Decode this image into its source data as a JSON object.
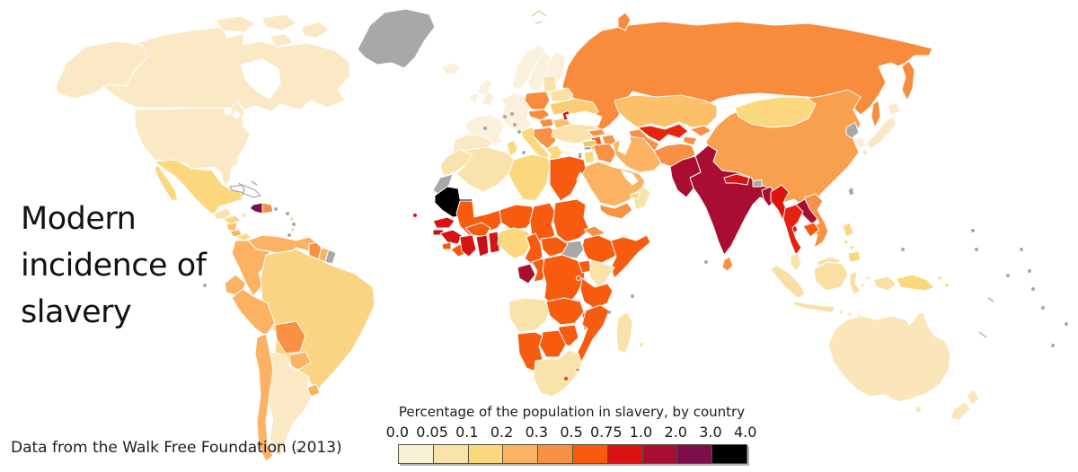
{
  "title": "Modern\nincidence of\nslavery",
  "attribution": "Data from the Walk Free Foundation (2013)",
  "legend": {
    "title": "Percentage of the population in slavery, by country",
    "ticks": [
      "0.0",
      "0.05",
      "0.1",
      "0.2",
      "0.3",
      "0.5",
      "0.75",
      "1.0",
      "2.0",
      "3.0",
      "4.0"
    ],
    "bins": [
      {
        "range": "0.0–0.05",
        "color": "#F8EFD7"
      },
      {
        "range": "0.05–0.1",
        "color": "#F9E3AB"
      },
      {
        "range": "0.1–0.2",
        "color": "#FBD87E"
      },
      {
        "range": "0.2–0.3",
        "color": "#FBB262"
      },
      {
        "range": "0.3–0.5",
        "color": "#F99145"
      },
      {
        "range": "0.5–0.75",
        "color": "#F75B10"
      },
      {
        "range": "0.75–1.0",
        "color": "#D81311"
      },
      {
        "range": "1.0–2.0",
        "color": "#A90D31"
      },
      {
        "range": "2.0–3.0",
        "color": "#7E0D4E"
      },
      {
        "range": "3.0–4.0",
        "color": "#000000"
      }
    ]
  },
  "map": {
    "ocean_color": "#FFFFFF",
    "border_color": "#FFFFFF",
    "no_data_color": "#A8A8A8",
    "dot_colors": {
      "gray": "#A8A8A8",
      "cream": "#F9E3AB",
      "yellow": "#FBD87E",
      "orange": "#F99145",
      "red": "#D81311"
    },
    "regions": [
      {
        "id": "greenland",
        "name": "Greenland",
        "value": "No data",
        "color": "#A8A8A8"
      },
      {
        "id": "canada",
        "name": "Canada",
        "value": "0.0–0.05",
        "color": "#FBE8C4"
      },
      {
        "id": "united-states",
        "name": "United States",
        "value": "0.0–0.05",
        "color": "#FBE8C4"
      },
      {
        "id": "mexico",
        "name": "Mexico",
        "value": "0.1–0.2",
        "color": "#FBD87E"
      },
      {
        "id": "guatemala-belize",
        "name": "Guatemala / Belize",
        "value": "0.05–0.1",
        "color": "#F9E3AB"
      },
      {
        "id": "honduras",
        "name": "Honduras",
        "value": "0.1–0.2",
        "color": "#FBD87E"
      },
      {
        "id": "nicaragua",
        "name": "Nicaragua",
        "value": "0.2–0.3",
        "color": "#FBC069"
      },
      {
        "id": "costa-rica",
        "name": "Costa Rica",
        "value": "0.2–0.3",
        "color": "#FBB262"
      },
      {
        "id": "panama",
        "name": "Panama",
        "value": "0.1–0.2",
        "color": "#FBD87E"
      },
      {
        "id": "cuba",
        "name": "Cuba",
        "value": "No data",
        "color": "#FFFFFF"
      },
      {
        "id": "haiti",
        "name": "Haiti",
        "value": "2.0–3.0",
        "color": "#7E0D4E"
      },
      {
        "id": "dominican-republic",
        "name": "Dominican Republic",
        "value": "0.3–0.5",
        "color": "#F99145"
      },
      {
        "id": "venezuela",
        "name": "Venezuela",
        "value": "0.2–0.3",
        "color": "#FBB262"
      },
      {
        "id": "colombia",
        "name": "Colombia",
        "value": "0.2–0.3",
        "color": "#FBB262"
      },
      {
        "id": "guyana",
        "name": "Guyana",
        "value": "0.3–0.5",
        "color": "#F99145"
      },
      {
        "id": "suriname",
        "name": "Suriname",
        "value": "0.2–0.3",
        "color": "#FBB262"
      },
      {
        "id": "french-guiana",
        "name": "French Guiana",
        "value": "No data",
        "color": "#A8A8A8"
      },
      {
        "id": "ecuador",
        "name": "Ecuador",
        "value": "0.2–0.3",
        "color": "#FBB262"
      },
      {
        "id": "peru",
        "name": "Peru",
        "value": "0.2–0.3",
        "color": "#FBB262"
      },
      {
        "id": "brazil",
        "name": "Brazil",
        "value": "0.1–0.2",
        "color": "#FBD483"
      },
      {
        "id": "bolivia",
        "name": "Bolivia",
        "value": "0.3–0.5",
        "color": "#F99145"
      },
      {
        "id": "paraguay",
        "name": "Paraguay",
        "value": "0.2–0.3",
        "color": "#FBB262"
      },
      {
        "id": "uruguay",
        "name": "Uruguay",
        "value": "0.2–0.3",
        "color": "#FBB262"
      },
      {
        "id": "chile",
        "name": "Chile",
        "value": "0.2–0.3",
        "color": "#FBB262"
      },
      {
        "id": "argentina",
        "name": "Argentina",
        "value": "0.0–0.05",
        "color": "#FBE8C4"
      },
      {
        "id": "cape-verde",
        "name": "Cape Verde",
        "value": "0.75–1.0",
        "color": "#D81311"
      },
      {
        "id": "iceland",
        "name": "Iceland",
        "value": "0.0–0.05",
        "color": "#FAF0DC"
      },
      {
        "id": "norway",
        "name": "Norway",
        "value": "0.0–0.05",
        "color": "#FAF0DC"
      },
      {
        "id": "sweden",
        "name": "Sweden",
        "value": "0.0–0.05",
        "color": "#FAF0DC"
      },
      {
        "id": "finland",
        "name": "Finland",
        "value": "0.0–0.05",
        "color": "#FAF0DC"
      },
      {
        "id": "denmark",
        "name": "Denmark",
        "value": "0.0–0.05",
        "color": "#FAF0DC"
      },
      {
        "id": "united-kingdom",
        "name": "United Kingdom",
        "value": "0.0–0.05",
        "color": "#FAF0DC"
      },
      {
        "id": "ireland",
        "name": "Ireland",
        "value": "0.0–0.05",
        "color": "#FAF0DC"
      },
      {
        "id": "france",
        "name": "France",
        "value": "0.0–0.05",
        "color": "#FAF0DC"
      },
      {
        "id": "central-europe",
        "name": "Germany / Benelux / Alps",
        "value": "0.0–0.05",
        "color": "#FAF0DC"
      },
      {
        "id": "spain",
        "name": "Spain / Portugal",
        "value": "0.0–0.05",
        "color": "#FBE8C4"
      },
      {
        "id": "italy",
        "name": "Italy",
        "value": "0.1–0.2",
        "color": "#FBD87E"
      },
      {
        "id": "poland",
        "name": "Poland",
        "value": "0.3–0.5",
        "color": "#F98B3C"
      },
      {
        "id": "czech-slovakia",
        "name": "Czechia / Slovakia",
        "value": "0.3–0.5",
        "color": "#F98B3C"
      },
      {
        "id": "hungary",
        "name": "Hungary",
        "value": "0.3–0.5",
        "color": "#F98B3C"
      },
      {
        "id": "balkans",
        "name": "Western Balkans",
        "value": "0.3–0.5",
        "color": "#F99145"
      },
      {
        "id": "greece",
        "name": "Greece",
        "value": "0.1–0.2",
        "color": "#FBD87E"
      },
      {
        "id": "bulgaria",
        "name": "Bulgaria",
        "value": "0.3–0.5",
        "color": "#F99145"
      },
      {
        "id": "romania",
        "name": "Romania",
        "value": "0.2–0.3",
        "color": "#FBC069"
      },
      {
        "id": "moldova",
        "name": "Moldova",
        "value": "0.75–1.0",
        "color": "#D81311"
      },
      {
        "id": "ukraine",
        "name": "Ukraine",
        "value": "0.2–0.3",
        "color": "#FBCC74"
      },
      {
        "id": "belarus",
        "name": "Belarus",
        "value": "0.05–0.1",
        "color": "#FBE09E"
      },
      {
        "id": "baltic-states",
        "name": "Baltic states",
        "value": "0.05–0.1",
        "color": "#F9E3AB"
      },
      {
        "id": "russia",
        "name": "Russia",
        "value": "0.3–0.5",
        "color": "#F98B3C"
      },
      {
        "id": "kazakhstan",
        "name": "Kazakhstan",
        "value": "0.2–0.3",
        "color": "#FBC069"
      },
      {
        "id": "uzbekistan",
        "name": "Uzbekistan",
        "value": "0.75–1.0",
        "color": "#E8250C"
      },
      {
        "id": "turkmenistan",
        "name": "Turkmenistan",
        "value": "0.3–0.5",
        "color": "#F99145"
      },
      {
        "id": "kyrgyzstan",
        "name": "Kyrgyzstan",
        "value": "0.3–0.5",
        "color": "#F99145"
      },
      {
        "id": "tajikistan",
        "name": "Tajikistan",
        "value": "0.3–0.5",
        "color": "#F99145"
      },
      {
        "id": "afghanistan",
        "name": "Afghanistan",
        "value": "0.3–0.5",
        "color": "#F99145"
      },
      {
        "id": "georgia",
        "name": "Georgia",
        "value": "0.3–0.5",
        "color": "#F99145"
      },
      {
        "id": "armenia",
        "name": "Armenia",
        "value": "0.5–0.75",
        "color": "#F75B10"
      },
      {
        "id": "azerbaijan",
        "name": "Azerbaijan",
        "value": "0.3–0.5",
        "color": "#F99145"
      },
      {
        "id": "turkey",
        "name": "Turkey",
        "value": "0.05–0.1",
        "color": "#F9E3AB"
      },
      {
        "id": "syria",
        "name": "Syria",
        "value": "0.2–0.3",
        "color": "#FBC069"
      },
      {
        "id": "israel",
        "name": "Israel",
        "value": "No data",
        "color": "#A8A8A8"
      },
      {
        "id": "jordan",
        "name": "Jordan",
        "value": "0.1–0.2",
        "color": "#FBD87E"
      },
      {
        "id": "iraq",
        "name": "Iraq",
        "value": "0.3–0.5",
        "color": "#F99145"
      },
      {
        "id": "iran",
        "name": "Iran",
        "value": "0.2–0.3",
        "color": "#FBB262"
      },
      {
        "id": "saudi-arabia",
        "name": "Saudi Arabia",
        "value": "0.2–0.3",
        "color": "#FBB262"
      },
      {
        "id": "yemen",
        "name": "Yemen",
        "value": "0.3–0.5",
        "color": "#F99145"
      },
      {
        "id": "oman",
        "name": "Oman",
        "value": "0.05–0.1",
        "color": "#F9E3AB"
      },
      {
        "id": "uae",
        "name": "United Arab Emirates",
        "value": "0.1–0.2",
        "color": "#FBD87E"
      },
      {
        "id": "pakistan",
        "name": "Pakistan",
        "value": "1.0–2.0",
        "color": "#A90D31"
      },
      {
        "id": "india",
        "name": "India",
        "value": "1.0–2.0",
        "color": "#A90D31"
      },
      {
        "id": "nepal",
        "name": "Nepal",
        "value": "0.75–1.0",
        "color": "#D81311"
      },
      {
        "id": "bhutan",
        "name": "Bhutan",
        "value": "No data",
        "color": "#A8A8A8"
      },
      {
        "id": "bangladesh",
        "name": "Bangladesh",
        "value": "1.0–2.0",
        "color": "#A90D31"
      },
      {
        "id": "sri-lanka",
        "name": "Sri Lanka",
        "value": "0.3–0.5",
        "color": "#F99145"
      },
      {
        "id": "china",
        "name": "China",
        "value": "0.3–0.5",
        "color": "#F9A04E"
      },
      {
        "id": "mongolia",
        "name": "Mongolia",
        "value": "0.1–0.2",
        "color": "#FBD87E"
      },
      {
        "id": "north-korea",
        "name": "North Korea",
        "value": "No data",
        "color": "#A8A8A8"
      },
      {
        "id": "south-korea",
        "name": "South Korea",
        "value": "0.0–0.05",
        "color": "#F9EFD9"
      },
      {
        "id": "japan",
        "name": "Japan",
        "value": "0.0–0.05",
        "color": "#FBE8C4"
      },
      {
        "id": "taiwan",
        "name": "Taiwan",
        "value": "No data",
        "color": "#A8A8A8"
      },
      {
        "id": "myanmar",
        "name": "Myanmar",
        "value": "0.75–1.0",
        "color": "#DC1410"
      },
      {
        "id": "thailand",
        "name": "Thailand",
        "value": "0.75–1.0",
        "color": "#E6200E"
      },
      {
        "id": "laos",
        "name": "Laos",
        "value": "1.0–2.0",
        "color": "#A90D31"
      },
      {
        "id": "cambodia",
        "name": "Cambodia",
        "value": "0.5–0.75",
        "color": "#F75B10"
      },
      {
        "id": "vietnam",
        "name": "Vietnam",
        "value": "0.3–0.5",
        "color": "#F99145"
      },
      {
        "id": "malaysia",
        "name": "Malaysia",
        "value": "0.05–0.1",
        "color": "#F9E3AB"
      },
      {
        "id": "indonesia",
        "name": "Indonesia",
        "value": "0.1–0.2",
        "color": "#FADFA2"
      },
      {
        "id": "philippines",
        "name": "Philippines",
        "value": "0.1–0.2",
        "color": "#FBD87E"
      },
      {
        "id": "papua-new-guinea",
        "name": "Papua New Guinea",
        "value": "0.1–0.2",
        "color": "#FBD87E"
      },
      {
        "id": "morocco",
        "name": "Morocco",
        "value": "0.05–0.1",
        "color": "#F9E3AB"
      },
      {
        "id": "western-sahara",
        "name": "Western Sahara",
        "value": "No data",
        "color": "#A8A8A8"
      },
      {
        "id": "algeria",
        "name": "Algeria",
        "value": "0.05–0.1",
        "color": "#F9E3AB"
      },
      {
        "id": "tunisia",
        "name": "Tunisia",
        "value": "0.1–0.2",
        "color": "#FBD87E"
      },
      {
        "id": "libya",
        "name": "Libya",
        "value": "0.1–0.2",
        "color": "#FBD87E"
      },
      {
        "id": "egypt",
        "name": "Egypt",
        "value": "0.5–0.75",
        "color": "#F75B10"
      },
      {
        "id": "mauritania",
        "name": "Mauritania",
        "value": "3.0–4.0",
        "color": "#000000"
      },
      {
        "id": "mali",
        "name": "Mali",
        "value": "0.5–0.75",
        "color": "#F75B10"
      },
      {
        "id": "niger",
        "name": "Niger",
        "value": "0.5–0.75",
        "color": "#F75B10"
      },
      {
        "id": "chad",
        "name": "Chad",
        "value": "0.5–0.75",
        "color": "#F75B10"
      },
      {
        "id": "sudan",
        "name": "Sudan",
        "value": "0.5–0.75",
        "color": "#F75B10"
      },
      {
        "id": "eritrea",
        "name": "Eritrea",
        "value": "0.3–0.5",
        "color": "#F99145"
      },
      {
        "id": "djibouti",
        "name": "Djibouti",
        "value": "0.3–0.5",
        "color": "#F99145"
      },
      {
        "id": "ethiopia",
        "name": "Ethiopia",
        "value": "0.5–0.75",
        "color": "#F75B10"
      },
      {
        "id": "somalia",
        "name": "Somalia",
        "value": "0.5–0.75",
        "color": "#F75B10"
      },
      {
        "id": "south-sudan",
        "name": "South Sudan",
        "value": "No data",
        "color": "#A8A8A8"
      },
      {
        "id": "senegal",
        "name": "Senegal",
        "value": "0.75–1.0",
        "color": "#D81311"
      },
      {
        "id": "guinea-bissau",
        "name": "Guinea-Bissau",
        "value": "0.75–1.0",
        "color": "#C81016"
      },
      {
        "id": "guinea",
        "name": "Guinea",
        "value": "0.75–1.0",
        "color": "#D81311"
      },
      {
        "id": "sierra-leone",
        "name": "Sierra Leone",
        "value": "0.5–0.75",
        "color": "#F75B10"
      },
      {
        "id": "liberia",
        "name": "Liberia",
        "value": "0.5–0.75",
        "color": "#F75B10"
      },
      {
        "id": "cote-divoire",
        "name": "Côte d'Ivoire",
        "value": "0.75–1.0",
        "color": "#D81311"
      },
      {
        "id": "burkina-faso",
        "name": "Burkina Faso",
        "value": "0.5–0.75",
        "color": "#F75B10"
      },
      {
        "id": "ghana",
        "name": "Ghana",
        "value": "0.75–1.0",
        "color": "#C81016"
      },
      {
        "id": "togo-benin",
        "name": "Togo / Benin",
        "value": "0.75–1.0",
        "color": "#D81311"
      },
      {
        "id": "nigeria",
        "name": "Nigeria",
        "value": "0.1–0.2",
        "color": "#FBD87E"
      },
      {
        "id": "cameroon",
        "name": "Cameroon",
        "value": "0.5–0.75",
        "color": "#F75B10"
      },
      {
        "id": "central-african-republic",
        "name": "Central African Republic",
        "value": "0.5–0.75",
        "color": "#F75B10"
      },
      {
        "id": "gabon",
        "name": "Gabon",
        "value": "1.0–2.0",
        "color": "#A90D31"
      },
      {
        "id": "congo",
        "name": "Congo",
        "value": "0.5–0.75",
        "color": "#F75B10"
      },
      {
        "id": "dr-congo",
        "name": "DR Congo",
        "value": "0.5–0.75",
        "color": "#F75B10"
      },
      {
        "id": "uganda",
        "name": "Uganda",
        "value": "0.5–0.75",
        "color": "#F75B10"
      },
      {
        "id": "kenya",
        "name": "Kenya",
        "value": "0.05–0.1",
        "color": "#F9E3AB"
      },
      {
        "id": "rwanda-burundi",
        "name": "Rwanda / Burundi",
        "value": "0.5–0.75",
        "color": "#F75B10"
      },
      {
        "id": "tanzania",
        "name": "Tanzania",
        "value": "0.5–0.75",
        "color": "#F75B10"
      },
      {
        "id": "angola",
        "name": "Angola",
        "value": "0.05–0.1",
        "color": "#F9E3AB"
      },
      {
        "id": "zambia",
        "name": "Zambia",
        "value": "0.5–0.75",
        "color": "#F75B10"
      },
      {
        "id": "malawi",
        "name": "Malawi",
        "value": "0.5–0.75",
        "color": "#F75B10"
      },
      {
        "id": "mozambique",
        "name": "Mozambique",
        "value": "0.5–0.75",
        "color": "#F75B10"
      },
      {
        "id": "zimbabwe",
        "name": "Zimbabwe",
        "value": "0.5–0.75",
        "color": "#F75B10"
      },
      {
        "id": "botswana",
        "name": "Botswana",
        "value": "0.5–0.75",
        "color": "#F75B10"
      },
      {
        "id": "namibia",
        "name": "Namibia",
        "value": "0.5–0.75",
        "color": "#F75B10"
      },
      {
        "id": "south-africa",
        "name": "South Africa",
        "value": "0.05–0.1",
        "color": "#F9E3AB"
      },
      {
        "id": "lesotho",
        "name": "Lesotho",
        "value": "0.5–0.75",
        "color": "#F75B10"
      },
      {
        "id": "swaziland",
        "name": "Swaziland",
        "value": "0.5–0.75",
        "color": "#F75B10"
      },
      {
        "id": "madagascar",
        "name": "Madagascar",
        "value": "0.05–0.1",
        "color": "#F9E3AB"
      },
      {
        "id": "australia",
        "name": "Australia",
        "value": "0.0–0.05",
        "color": "#FBE6BA"
      },
      {
        "id": "new-zealand",
        "name": "New Zealand",
        "value": "0.0–0.05",
        "color": "#FBE6BA"
      }
    ]
  }
}
